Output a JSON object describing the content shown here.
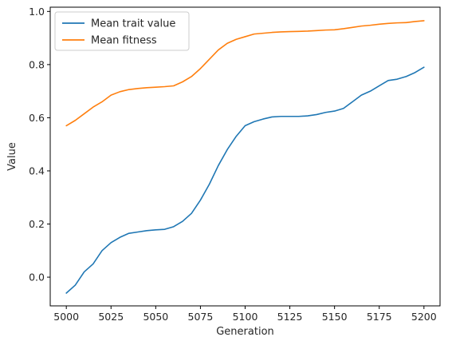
{
  "chart_data": {
    "type": "line",
    "title": "",
    "xlabel": "Generation",
    "ylabel": "Value",
    "xlim": [
      4991,
      5209
    ],
    "ylim": [
      -0.108,
      1.016
    ],
    "xticks": [
      5000,
      5025,
      5050,
      5075,
      5100,
      5125,
      5150,
      5175,
      5200
    ],
    "yticks": [
      0.0,
      0.2,
      0.4,
      0.6,
      0.8,
      1.0
    ],
    "xtick_labels": [
      "5000",
      "5025",
      "5050",
      "5075",
      "5100",
      "5125",
      "5150",
      "5175",
      "5200"
    ],
    "ytick_labels": [
      "0.0",
      "0.2",
      "0.4",
      "0.6",
      "0.8",
      "1.0"
    ],
    "grid": false,
    "legend_position": "upper-left",
    "x": [
      5000,
      5005,
      5010,
      5015,
      5020,
      5025,
      5030,
      5035,
      5040,
      5045,
      5050,
      5055,
      5060,
      5065,
      5070,
      5075,
      5080,
      5085,
      5090,
      5095,
      5100,
      5105,
      5110,
      5115,
      5120,
      5125,
      5130,
      5135,
      5140,
      5145,
      5150,
      5155,
      5160,
      5165,
      5170,
      5175,
      5180,
      5185,
      5190,
      5195,
      5200
    ],
    "series": [
      {
        "name": "Mean trait value",
        "color": "#1f77b4",
        "values": [
          -0.06,
          -0.03,
          0.02,
          0.05,
          0.1,
          0.13,
          0.15,
          0.165,
          0.17,
          0.175,
          0.178,
          0.18,
          0.19,
          0.21,
          0.24,
          0.29,
          0.35,
          0.42,
          0.48,
          0.53,
          0.57,
          0.585,
          0.595,
          0.603,
          0.605,
          0.605,
          0.605,
          0.607,
          0.612,
          0.62,
          0.625,
          0.635,
          0.66,
          0.685,
          0.7,
          0.72,
          0.74,
          0.745,
          0.755,
          0.77,
          0.79
        ]
      },
      {
        "name": "Mean fitness",
        "color": "#ff7f0e",
        "values": [
          0.57,
          0.59,
          0.615,
          0.64,
          0.66,
          0.685,
          0.698,
          0.706,
          0.71,
          0.713,
          0.715,
          0.717,
          0.72,
          0.735,
          0.755,
          0.785,
          0.82,
          0.855,
          0.88,
          0.895,
          0.905,
          0.915,
          0.918,
          0.921,
          0.923,
          0.924,
          0.925,
          0.926,
          0.928,
          0.93,
          0.931,
          0.935,
          0.94,
          0.945,
          0.948,
          0.952,
          0.955,
          0.957,
          0.958,
          0.962,
          0.965
        ]
      }
    ]
  }
}
